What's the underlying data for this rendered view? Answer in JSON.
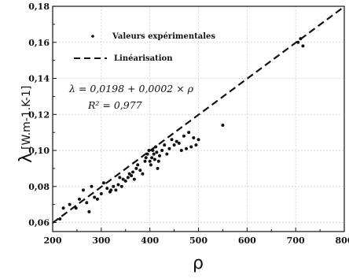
{
  "chart_data": {
    "type": "scatter",
    "xlabel": "ρ",
    "ylabel_symbol": "λ",
    "ylabel_units": "[W.m-1.K-1]",
    "xlim": [
      200,
      800
    ],
    "ylim": [
      0.055,
      0.18
    ],
    "xticks": [
      "200",
      "300",
      "400",
      "500",
      "600",
      "700",
      "800"
    ],
    "yticks": [
      "0,06",
      "0,08",
      "0,10",
      "0,12",
      "0,14",
      "0,16",
      "0,18"
    ],
    "grid": true,
    "legend_placement": "top-left",
    "series": [
      {
        "name": "Valeurs expérimentales",
        "marker": "dot",
        "x": [
          215,
          222,
          235,
          248,
          255,
          263,
          270,
          275,
          280,
          286,
          292,
          300,
          305,
          312,
          318,
          320,
          325,
          330,
          335,
          338,
          342,
          345,
          350,
          355,
          358,
          362,
          365,
          368,
          372,
          375,
          380,
          385,
          390,
          392,
          395,
          398,
          400,
          402,
          404,
          406,
          408,
          410,
          412,
          414,
          416,
          418,
          420,
          425,
          430,
          435,
          440,
          445,
          450,
          455,
          460,
          465,
          470,
          475,
          480,
          485,
          490,
          495,
          500,
          550,
          705,
          710,
          715
        ],
        "y": [
          0.062,
          0.068,
          0.07,
          0.068,
          0.073,
          0.078,
          0.071,
          0.066,
          0.08,
          0.074,
          0.073,
          0.076,
          0.082,
          0.079,
          0.077,
          0.078,
          0.08,
          0.078,
          0.081,
          0.085,
          0.08,
          0.084,
          0.083,
          0.085,
          0.087,
          0.086,
          0.088,
          0.084,
          0.09,
          0.092,
          0.089,
          0.087,
          0.094,
          0.096,
          0.098,
          0.1,
          0.094,
          0.092,
          0.096,
          0.1,
          0.098,
          0.095,
          0.102,
          0.099,
          0.09,
          0.094,
          0.097,
          0.1,
          0.103,
          0.098,
          0.101,
          0.106,
          0.103,
          0.105,
          0.104,
          0.1,
          0.108,
          0.101,
          0.11,
          0.102,
          0.107,
          0.103,
          0.106,
          0.114,
          0.16,
          0.162,
          0.158
        ]
      },
      {
        "name": "Linéarisation",
        "marker": "dashed-line",
        "x": [
          200,
          800
        ],
        "y": [
          0.0598,
          0.1798
        ]
      }
    ],
    "annotations": {
      "equation": "λ = 0,0198 + 0,0002 × ρ",
      "r2": "R² = 0,977"
    }
  }
}
